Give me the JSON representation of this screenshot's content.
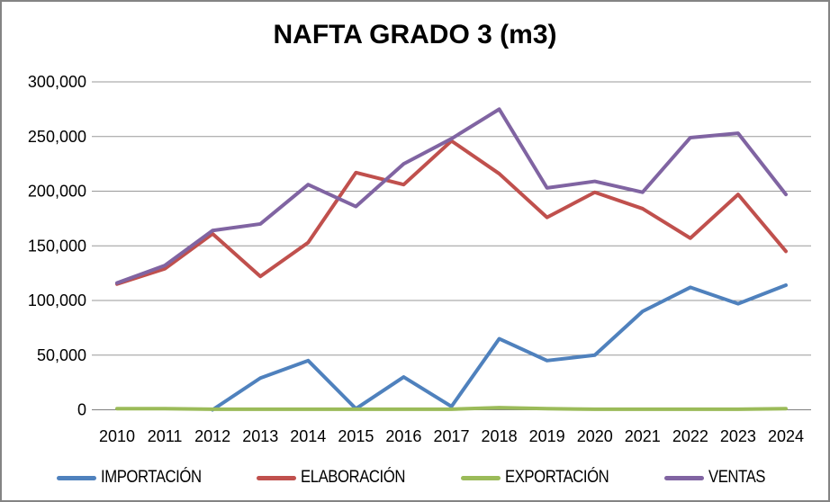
{
  "title": "NAFTA GRADO 3 (m3)",
  "chart_data": {
    "type": "line",
    "title": "NAFTA GRADO 3 (m3)",
    "categories": [
      "2010",
      "2011",
      "2012",
      "2013",
      "2014",
      "2015",
      "2016",
      "2017",
      "2018",
      "2019",
      "2020",
      "2021",
      "2022",
      "2023",
      "2024"
    ],
    "series": [
      {
        "name": "IMPORTACIÓN",
        "color": "#4F81BD",
        "values": [
          null,
          null,
          0,
          29000,
          45000,
          1000,
          30000,
          3000,
          65000,
          45000,
          50000,
          90000,
          112000,
          97000,
          114000
        ]
      },
      {
        "name": "ELABORACIÓN",
        "color": "#C0504D",
        "values": [
          115000,
          129000,
          161000,
          122000,
          153000,
          217000,
          206000,
          246000,
          216000,
          176000,
          199000,
          184000,
          157000,
          197000,
          145000
        ]
      },
      {
        "name": "EXPORTACIÓN",
        "color": "#9BBB59",
        "values": [
          1000,
          1000,
          500,
          500,
          500,
          500,
          500,
          500,
          2000,
          1000,
          500,
          500,
          500,
          500,
          1000
        ]
      },
      {
        "name": "VENTAS",
        "color": "#8064A2",
        "values": [
          116000,
          132000,
          164000,
          170000,
          206000,
          186000,
          225000,
          248000,
          275000,
          203000,
          209000,
          199000,
          249000,
          253000,
          197000
        ]
      }
    ],
    "ylim": [
      0,
      300000
    ],
    "ytick_step": 50000,
    "ytick_labels": [
      "0",
      "50,000",
      "100,000",
      "150,000",
      "200,000",
      "250,000",
      "300,000"
    ],
    "xlabel": "",
    "ylabel": "",
    "grid": true,
    "legend_position": "bottom"
  },
  "colors": {
    "gridline": "#999999",
    "zero_axis": "#808080",
    "axis_text": "#000000",
    "border": "#848484",
    "background": "#FFFFFF"
  }
}
